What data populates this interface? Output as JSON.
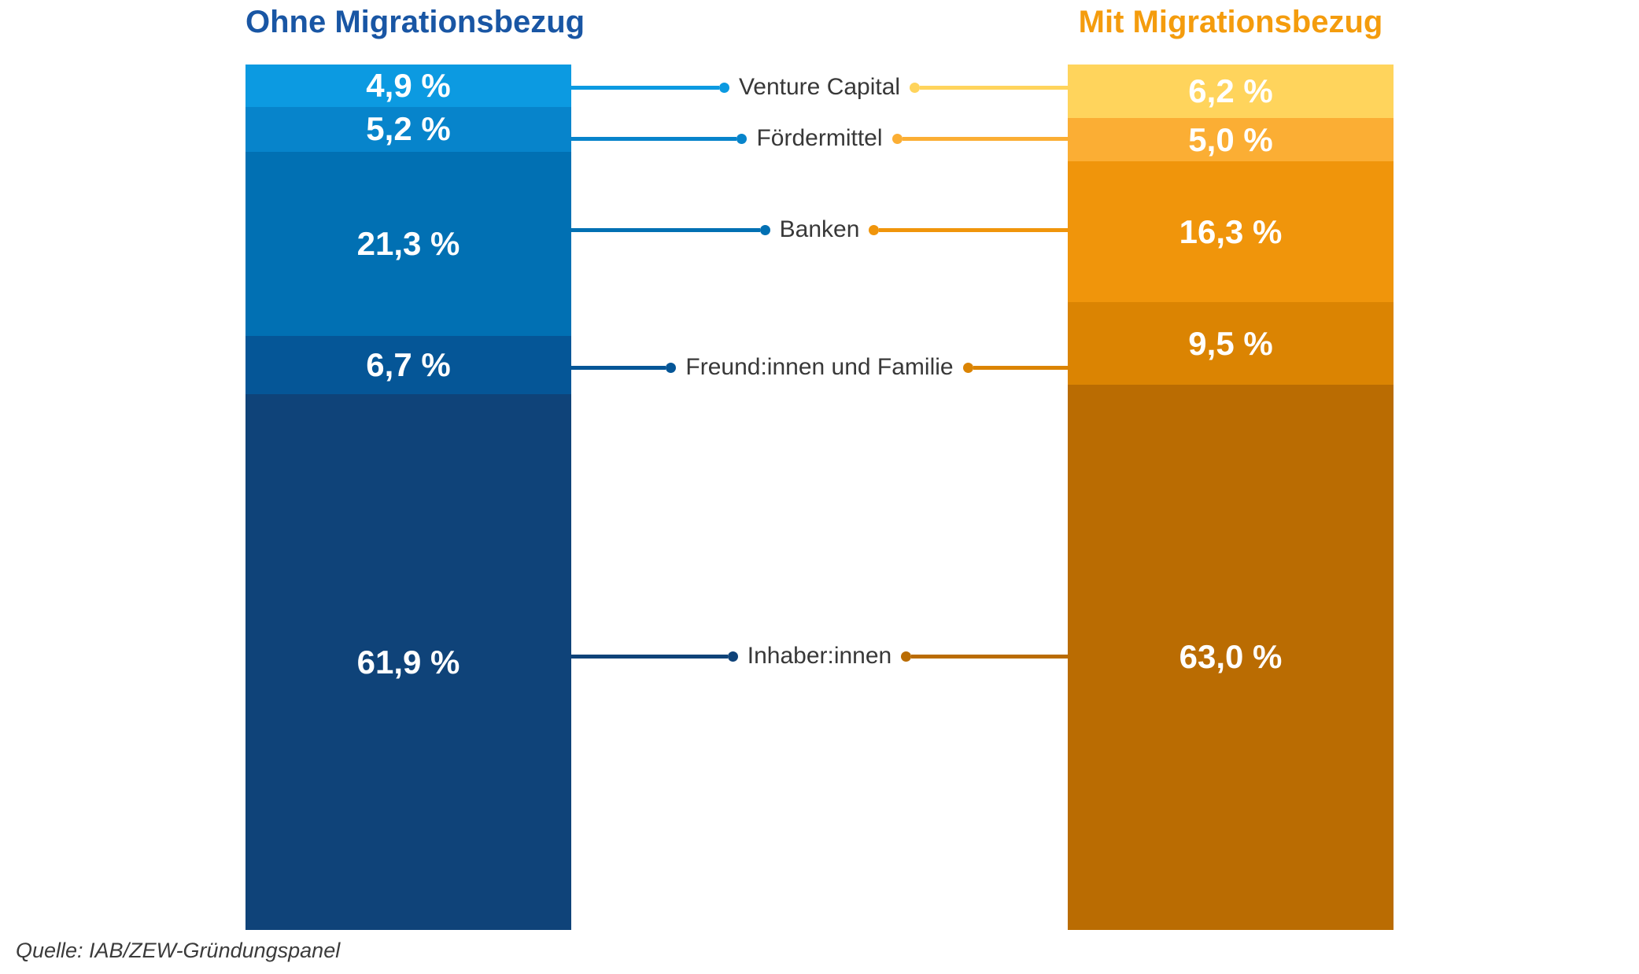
{
  "source": "Quelle: IAB/ZEW-Gründungspanel",
  "colors": {
    "background": "#FFFFFF",
    "left_title": "#1956A4",
    "right_title": "#F49C0D",
    "category_label": "#383838",
    "value_label": "#FFFFFF",
    "source_text": "#3B3B3B"
  },
  "chart_data": {
    "type": "bar",
    "subtype": "stacked-comparison",
    "title": "",
    "unit": "%",
    "ylim": [
      0,
      100
    ],
    "grid": false,
    "legend_position": "none",
    "categories": [
      "Venture Capital",
      "Fördermittel",
      "Banken",
      "Freund:innen und Familie",
      "Inhaber:innen"
    ],
    "series": [
      {
        "name": "Ohne Migrationsbezug",
        "values": [
          4.9,
          5.2,
          21.3,
          6.7,
          61.9
        ],
        "value_labels": [
          "4,9 %",
          "5,2 %",
          "21,3 %",
          "6,7 %",
          "61,9 %"
        ],
        "segment_colors": [
          "#0C9AE1",
          "#0784CB",
          "#0170B3",
          "#055697",
          "#0F4379"
        ]
      },
      {
        "name": "Mit Migrationsbezug",
        "values": [
          6.2,
          5.0,
          16.3,
          9.5,
          63.0
        ],
        "value_labels": [
          "6,2 %",
          "5,0 %",
          "16,3 %",
          "9,5 %",
          "63,0 %"
        ],
        "segment_colors": [
          "#FFD45C",
          "#FBAE34",
          "#F0950B",
          "#DB8402",
          "#BA6C02"
        ]
      }
    ]
  }
}
